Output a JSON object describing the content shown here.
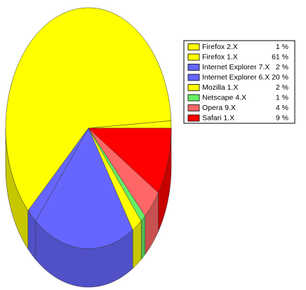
{
  "chart_data": {
    "type": "pie",
    "categories": [
      "Firefox 2.X",
      "Firefox 1.X",
      "Internet Explorer 7.X",
      "Internet Explorer 6.X",
      "Mozilla 1.X",
      "Netscape 4.X",
      "Opera 9.X",
      "Safari 1.X"
    ],
    "values": [
      1,
      61,
      2,
      20,
      2,
      1,
      4,
      9
    ],
    "value_labels": [
      "1 %",
      "61 %",
      "2 %",
      "20 %",
      "2 %",
      "1 %",
      "4 %",
      "9 %"
    ],
    "colors": [
      "#ffff00",
      "#ffff00",
      "#6666ff",
      "#6666ff",
      "#ffff00",
      "#66ee66",
      "#ff6666",
      "#ff0000"
    ],
    "legend": "right"
  }
}
